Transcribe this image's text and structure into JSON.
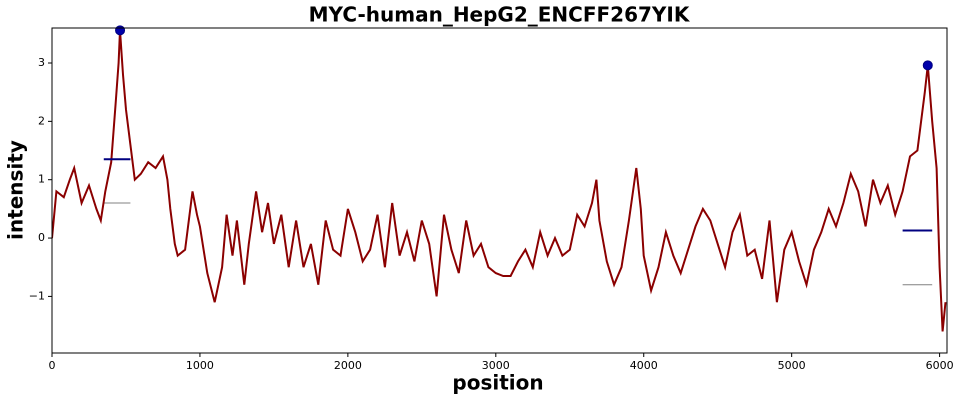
{
  "chart_data": {
    "type": "line",
    "title": "MYC-human_HepG2_ENCFF267YIK",
    "x_label": "position",
    "y_label": "intensity",
    "xlim": [
      0,
      6050
    ],
    "xticks": [
      0,
      1000,
      2000,
      3000,
      4000,
      5000,
      6000
    ],
    "ylim": [
      -1.97,
      3.6
    ],
    "yticks": [
      {
        "value": -1,
        "label": "−1"
      },
      0,
      1,
      2,
      3
    ],
    "grid": false,
    "series": [
      {
        "color": "#8b0000",
        "x": [
          0,
          30,
          80,
          120,
          150,
          200,
          250,
          300,
          330,
          360,
          400,
          430,
          450,
          460,
          480,
          500,
          530,
          560,
          600,
          650,
          700,
          750,
          780,
          800,
          830,
          850,
          900,
          950,
          980,
          1000,
          1050,
          1100,
          1150,
          1180,
          1220,
          1250,
          1300,
          1330,
          1380,
          1420,
          1460,
          1500,
          1550,
          1600,
          1650,
          1700,
          1750,
          1800,
          1850,
          1900,
          1950,
          2000,
          2050,
          2100,
          2150,
          2200,
          2250,
          2300,
          2350,
          2400,
          2450,
          2500,
          2550,
          2600,
          2650,
          2700,
          2750,
          2800,
          2850,
          2900,
          2950,
          3000,
          3050,
          3100,
          3150,
          3200,
          3250,
          3300,
          3350,
          3400,
          3450,
          3500,
          3550,
          3600,
          3650,
          3680,
          3700,
          3750,
          3800,
          3850,
          3900,
          3950,
          3980,
          4000,
          4050,
          4100,
          4150,
          4200,
          4250,
          4300,
          4350,
          4400,
          4450,
          4500,
          4550,
          4600,
          4650,
          4700,
          4750,
          4800,
          4850,
          4900,
          4950,
          5000,
          5050,
          5100,
          5150,
          5200,
          5250,
          5300,
          5350,
          5400,
          5450,
          5500,
          5550,
          5600,
          5650,
          5700,
          5750,
          5800,
          5850,
          5900,
          5920,
          5950,
          5980,
          6000,
          6020,
          6040
        ],
        "values": [
          0,
          0.8,
          0.7,
          1.0,
          1.2,
          0.6,
          0.9,
          0.5,
          0.3,
          0.8,
          1.3,
          2.3,
          3.0,
          3.56,
          2.8,
          2.2,
          1.6,
          1.0,
          1.1,
          1.3,
          1.2,
          1.4,
          1.0,
          0.5,
          -0.1,
          -0.3,
          -0.2,
          0.8,
          0.4,
          0.2,
          -0.6,
          -1.1,
          -0.5,
          0.4,
          -0.3,
          0.3,
          -0.8,
          -0.1,
          0.8,
          0.1,
          0.6,
          -0.1,
          0.4,
          -0.5,
          0.3,
          -0.5,
          -0.1,
          -0.8,
          0.3,
          -0.2,
          -0.3,
          0.5,
          0.1,
          -0.4,
          -0.2,
          0.4,
          -0.5,
          0.6,
          -0.3,
          0.1,
          -0.4,
          0.3,
          -0.1,
          -1.0,
          0.4,
          -0.2,
          -0.6,
          0.3,
          -0.3,
          -0.1,
          -0.5,
          -0.6,
          -0.65,
          -0.65,
          -0.4,
          -0.2,
          -0.5,
          0.1,
          -0.3,
          0.0,
          -0.3,
          -0.2,
          0.4,
          0.2,
          0.6,
          1.0,
          0.3,
          -0.4,
          -0.8,
          -0.5,
          0.3,
          1.2,
          0.5,
          -0.3,
          -0.9,
          -0.5,
          0.1,
          -0.3,
          -0.6,
          -0.2,
          0.2,
          0.5,
          0.3,
          -0.1,
          -0.5,
          0.1,
          0.4,
          -0.3,
          -0.2,
          -0.7,
          0.3,
          -1.1,
          -0.2,
          0.1,
          -0.4,
          -0.8,
          -0.2,
          0.1,
          0.5,
          0.2,
          0.6,
          1.1,
          0.8,
          0.2,
          1.0,
          0.6,
          0.9,
          0.4,
          0.8,
          1.4,
          1.5,
          2.5,
          2.96,
          2.0,
          1.2,
          -0.5,
          -1.6,
          -1.1
        ]
      }
    ],
    "peaks": {
      "color": "#0000aa",
      "x": [
        460,
        5920
      ],
      "values": [
        3.56,
        2.96
      ]
    },
    "width_lines": {
      "color": "#000080",
      "values": [
        1.35,
        0.13
      ],
      "x_start": [
        350,
        5750
      ],
      "x_end": [
        530,
        5950
      ]
    },
    "base_lines": {
      "color": "#808080",
      "values": [
        0.6,
        -0.8
      ],
      "x_start": [
        350,
        5750
      ],
      "x_end": [
        530,
        5950
      ]
    }
  }
}
